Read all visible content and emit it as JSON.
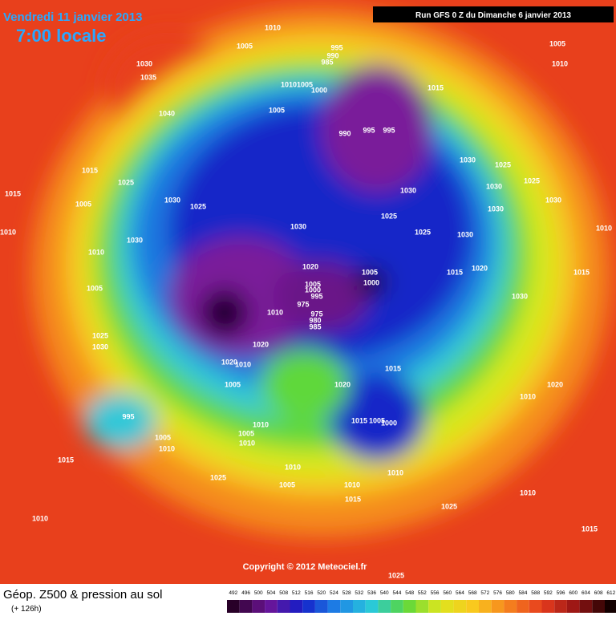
{
  "map": {
    "date": "Vendredi 11 janvier 2013",
    "time": "7:00 locale",
    "run": "Run GFS 0 Z du Dimanche 6 janvier 2013",
    "copyright": "Copyright © 2012 Meteociel.fr",
    "footer_title": "Géop. Z500 & pression au sol",
    "footer_subtitle": "(+ 126h)",
    "scale": [
      492,
      496,
      500,
      504,
      508,
      512,
      516,
      520,
      524,
      528,
      532,
      536,
      540,
      544,
      548,
      552,
      556,
      560,
      564,
      568,
      572,
      576,
      580,
      584,
      588,
      592,
      596,
      600,
      604,
      608,
      612
    ],
    "pressure_labels": [
      1010,
      1005,
      995,
      990,
      985,
      1000,
      1010,
      1005,
      1030,
      1035,
      1040,
      1005,
      990,
      995,
      995,
      1015,
      1010,
      1005,
      1030,
      1025,
      1025,
      1030,
      1030,
      1030,
      1030,
      1025,
      1025,
      1030,
      1015,
      1010,
      1015,
      1025,
      1030,
      1025,
      1005,
      1030,
      1010,
      1005,
      1025,
      1030,
      1030,
      1020,
      1005,
      1000,
      1005,
      1000,
      995,
      975,
      1010,
      975,
      980,
      985,
      1015,
      1020,
      1030,
      1015,
      1010,
      1020,
      1020,
      1010,
      1005,
      1020,
      1015,
      1010,
      1020,
      995,
      1005,
      1010,
      1010,
      1005,
      1010,
      1015,
      1005,
      1000,
      1010,
      1005,
      1010,
      1015,
      1010,
      1025,
      1015,
      1025,
      1010,
      1015,
      1025,
      1010
    ]
  }
}
